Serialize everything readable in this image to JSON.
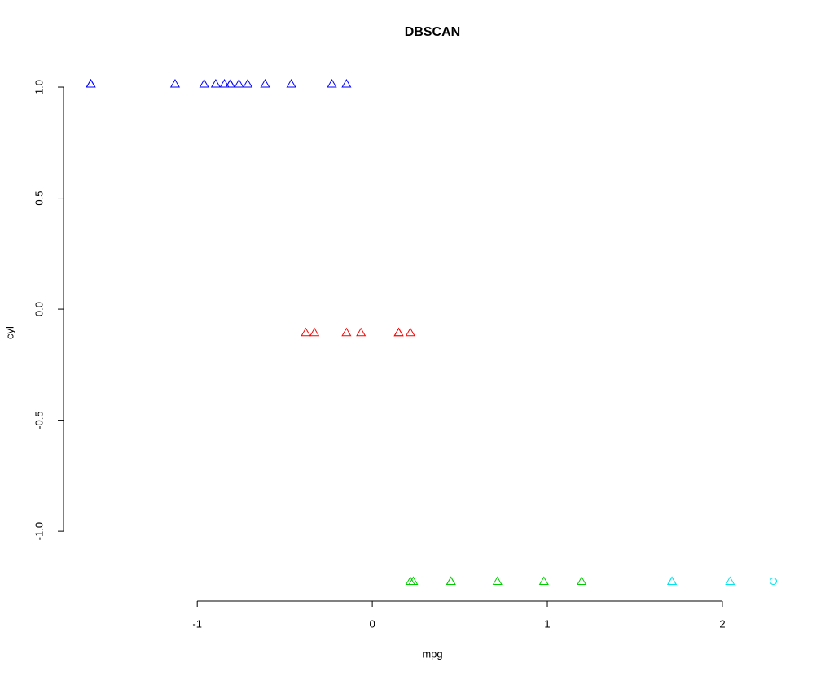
{
  "chart_data": {
    "type": "scatter",
    "title": "DBSCAN",
    "x_label": "mpg",
    "y_label": "cyl",
    "xlim": [
      -1.764,
      2.447
    ],
    "ylim": [
      -1.3145,
      1.1045
    ],
    "xticks": [
      -1,
      0,
      1,
      2
    ],
    "yticks": [
      {
        "value": 1,
        "label": "1.0"
      },
      0.5,
      {
        "value": 0,
        "label": "0.0"
      },
      -0.5,
      {
        "value": -1,
        "label": "-1.0"
      }
    ],
    "series": [
      {
        "color": "#0000ff",
        "marker": "triangle",
        "x": [
          -0.2306,
          -0.9607,
          -0.6123,
          -0.463,
          -0.8114,
          -1.6079,
          -1.6079,
          -0.8944,
          -0.7616,
          -0.8114,
          -1.1267,
          -0.1477,
          -0.7118,
          -0.8446
        ],
        "values": [
          1.0149,
          1.0149,
          1.0149,
          1.0149,
          1.0149,
          1.0149,
          1.0149,
          1.0149,
          1.0149,
          1.0149,
          1.0149,
          1.0149,
          1.0149,
          1.0149
        ]
      },
      {
        "color": "#ff0000",
        "marker": "triangle",
        "x": [
          0.1509,
          0.1509,
          0.2173,
          -0.3302,
          -0.1477,
          -0.38,
          -0.0647
        ],
        "values": [
          -0.1049,
          -0.1049,
          -0.1049,
          -0.1049,
          -0.1049,
          -0.1049,
          -0.1049
        ]
      },
      {
        "color": "#00cd00",
        "marker": "triangle",
        "x": [
          0.2173,
          0.234,
          0.4495,
          0.4495,
          0.715,
          0.9804,
          1.1962
        ],
        "values": [
          -1.2249,
          -1.2249,
          -1.2249,
          -1.2249,
          -1.2249,
          -1.2249,
          -1.2249
        ]
      },
      {
        "color": "#00e5ee",
        "marker": "triangle",
        "x": [
          1.7121,
          1.7121,
          2.0437
        ],
        "values": [
          -1.2249,
          -1.2249,
          -1.2249
        ]
      },
      {
        "color": "#00e5ee",
        "marker": "circle",
        "x": [
          2.2913
        ],
        "values": [
          -1.2249
        ]
      }
    ]
  }
}
